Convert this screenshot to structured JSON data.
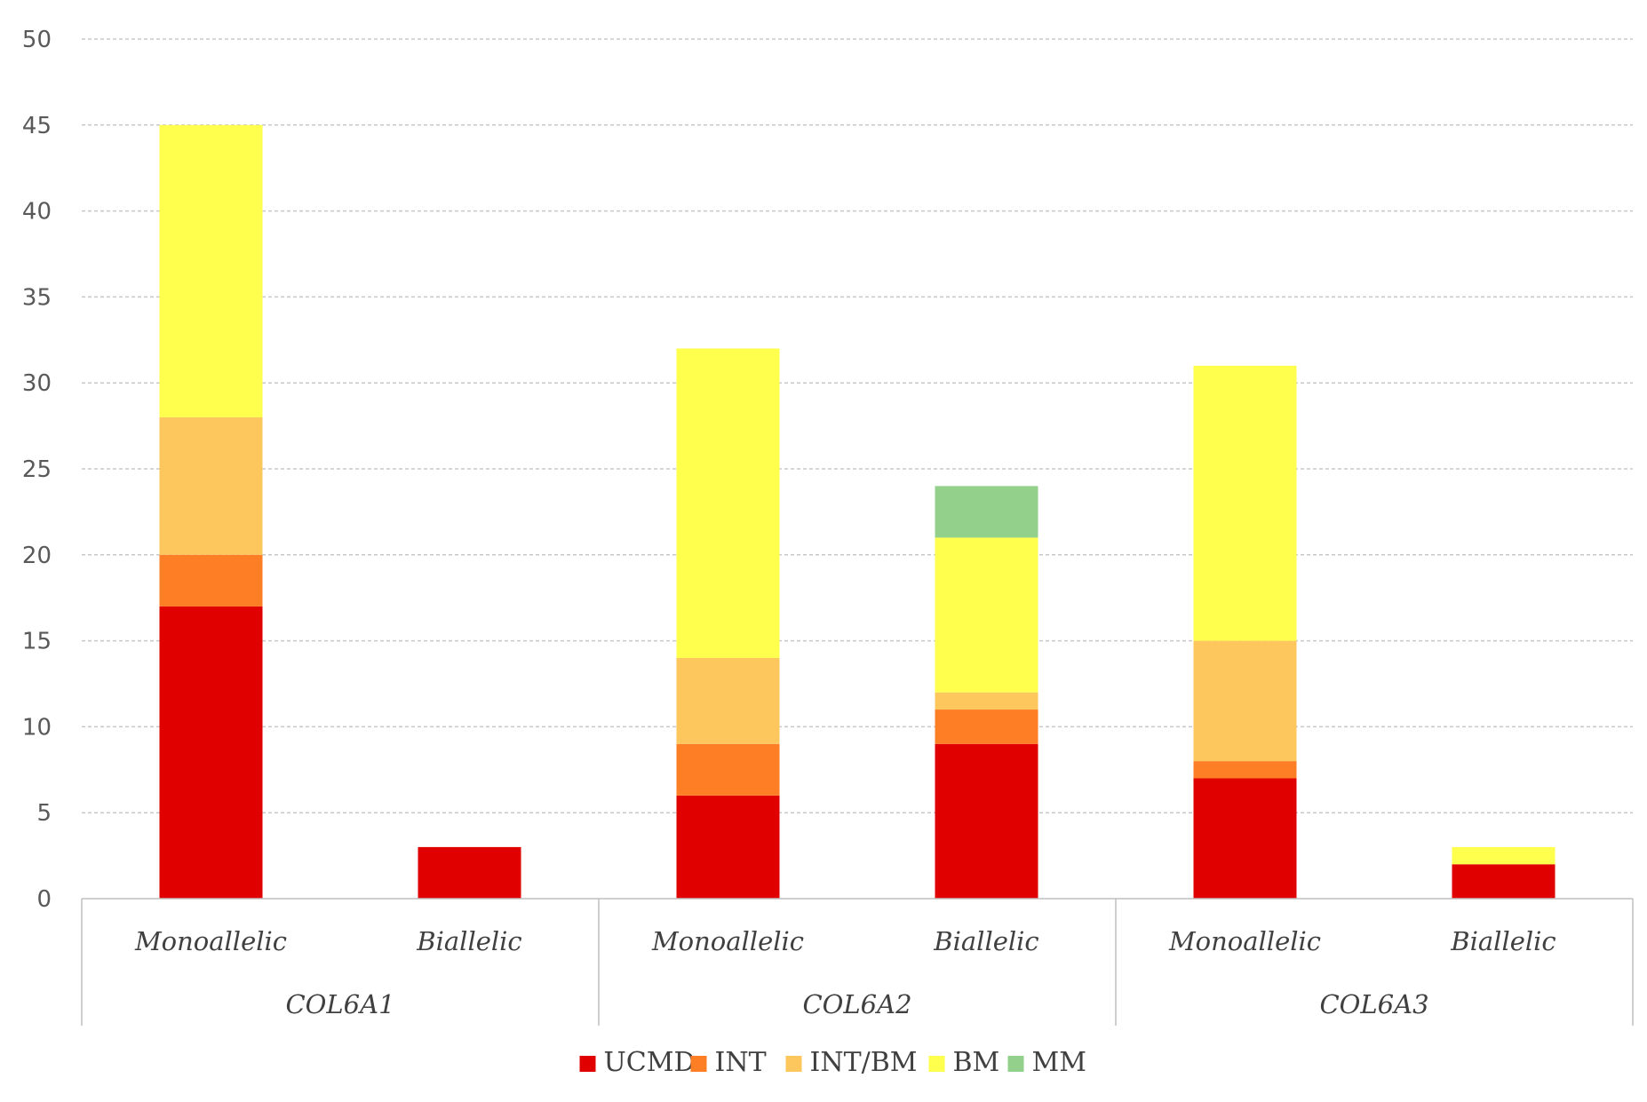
{
  "chart_data": {
    "type": "bar",
    "stacked": true,
    "groups": [
      {
        "label": "COL6A1",
        "categories": [
          "Monoallelic",
          "Biallelic"
        ]
      },
      {
        "label": "COL6A2",
        "categories": [
          "Monoallelic",
          "Biallelic"
        ]
      },
      {
        "label": "COL6A3",
        "categories": [
          "Monoallelic",
          "Biallelic"
        ]
      }
    ],
    "categories": [
      "Monoallelic",
      "Biallelic",
      "Monoallelic",
      "Biallelic",
      "Monoallelic",
      "Biallelic"
    ],
    "series": [
      {
        "name": "UCMD",
        "color": "#e00000",
        "values": [
          17,
          3,
          6,
          9,
          7,
          2
        ]
      },
      {
        "name": "INT",
        "color": "#fd7e24",
        "values": [
          3,
          0,
          3,
          2,
          1,
          0
        ]
      },
      {
        "name": "INT/BM",
        "color": "#fec75e",
        "values": [
          8,
          0,
          5,
          1,
          7,
          0
        ]
      },
      {
        "name": "BM",
        "color": "#ffff4d",
        "values": [
          17,
          0,
          18,
          9,
          16,
          1
        ]
      },
      {
        "name": "MM",
        "color": "#92d08c",
        "values": [
          0,
          0,
          0,
          3,
          0,
          0
        ]
      }
    ],
    "yticks": [
      0,
      5,
      10,
      15,
      20,
      25,
      30,
      35,
      40,
      45,
      50
    ],
    "ylim": [
      0,
      50
    ],
    "grid": true,
    "legend": "bottom",
    "title": "",
    "xlabel": "",
    "ylabel": ""
  }
}
